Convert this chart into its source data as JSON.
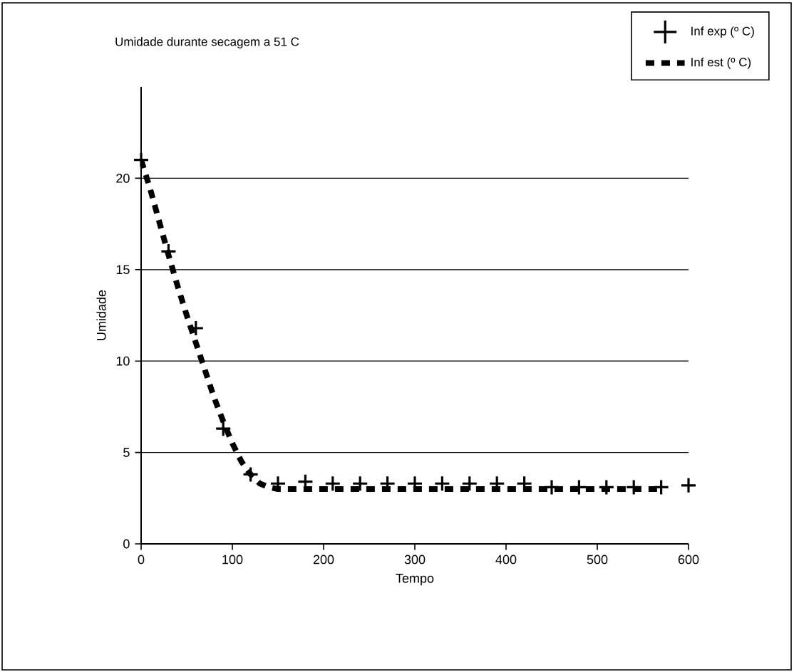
{
  "chart_data": {
    "type": "line",
    "title": "Umidade durante secagem a 51 C",
    "xlabel": "Tempo",
    "ylabel": "Umidade",
    "xlim": [
      0,
      600
    ],
    "xticks": [
      0,
      100,
      200,
      300,
      400,
      500,
      600
    ],
    "ylim": [
      0,
      25
    ],
    "yticks": [
      0,
      5,
      10,
      15,
      20
    ],
    "grid": "y",
    "legend": "top right",
    "series": [
      {
        "name": "Inf exp (º C)",
        "type": "scatter",
        "marker": "cross",
        "color": "#000000",
        "x": [
          0,
          30,
          60,
          90,
          120,
          150,
          180,
          210,
          240,
          270,
          300,
          330,
          360,
          390,
          420,
          450,
          480,
          510,
          540,
          570,
          600
        ],
        "values": [
          21,
          16,
          11.8,
          6.3,
          3.8,
          3.3,
          3.4,
          3.3,
          3.3,
          3.3,
          3.3,
          3.3,
          3.3,
          3.3,
          3.3,
          3.1,
          3.1,
          3.1,
          3.1,
          3.1,
          3.2
        ]
      },
      {
        "name": "Inf est (º C)",
        "type": "line",
        "line_style": "dashed",
        "color": "#000000",
        "x": [
          0,
          10,
          20,
          30,
          40,
          50,
          60,
          70,
          80,
          90,
          100,
          110,
          120,
          130,
          140,
          150,
          200,
          300,
          400,
          500,
          570
        ],
        "values": [
          21,
          19.4,
          17.6,
          15.8,
          14.1,
          12.5,
          11,
          9.5,
          8,
          6.7,
          5.5,
          4.5,
          3.8,
          3.3,
          3.1,
          3.0,
          3.0,
          3.0,
          3.0,
          3.0,
          3.0
        ]
      }
    ]
  }
}
